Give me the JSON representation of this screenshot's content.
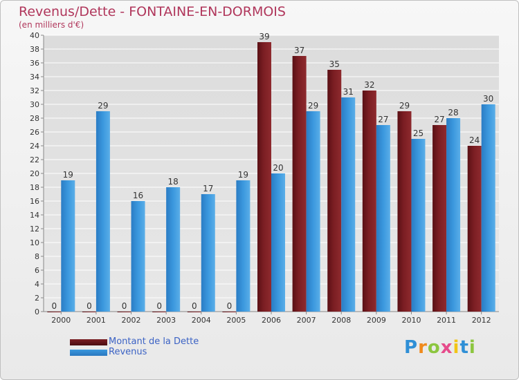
{
  "header": {
    "title": "Revenus/Dette - FONTAINE-EN-DORMOIS",
    "subtitle": "(en milliers d'€)"
  },
  "logo": {
    "text": "Proxiti",
    "letters": [
      "P",
      "r",
      "o",
      "x",
      "i",
      "t",
      "i"
    ],
    "letter_colors": [
      "#2f8fd6",
      "#f08a1c",
      "#8cc63f",
      "#e64b8b",
      "#f2c418",
      "#2f8fd6",
      "#8cc63f"
    ]
  },
  "colors": {
    "dette": "#7b1e23",
    "revenus": "#3b98de",
    "axis": "#888888",
    "grid": "#ffffff",
    "text": "#333333"
  },
  "chart_data": {
    "type": "bar",
    "categories": [
      "2000",
      "2001",
      "2002",
      "2003",
      "2004",
      "2005",
      "2006",
      "2007",
      "2008",
      "2009",
      "2010",
      "2011",
      "2012"
    ],
    "series": [
      {
        "name": "Montant de la Dette",
        "values": [
          0,
          0,
          0,
          0,
          0,
          0,
          39,
          37,
          35,
          32,
          29,
          27,
          24
        ]
      },
      {
        "name": "Revenus",
        "values": [
          19,
          29,
          16,
          18,
          17,
          19,
          20,
          29,
          31,
          27,
          25,
          28,
          30
        ]
      }
    ],
    "title": "Revenus/Dette - FONTAINE-EN-DORMOIS",
    "ylim": [
      0,
      40
    ],
    "ytick_step": 2,
    "grid": true,
    "legend": "bottom-left"
  }
}
